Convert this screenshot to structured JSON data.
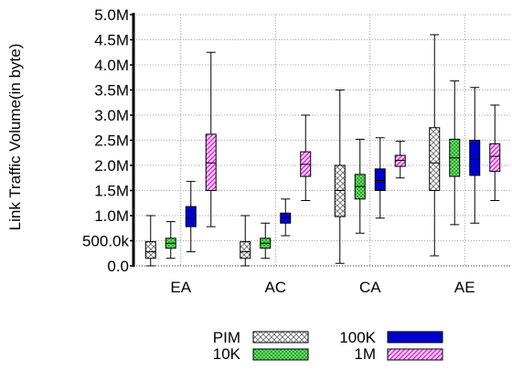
{
  "chart_data": {
    "type": "box",
    "ylabel": "Link Traffic Volume(in byte)",
    "ylim": [
      0,
      5000000
    ],
    "y_ticks": [
      {
        "value": 0,
        "label": "0.0"
      },
      {
        "value": 500000,
        "label": "500.0k"
      },
      {
        "value": 1000000,
        "label": "1.0M"
      },
      {
        "value": 1500000,
        "label": "1.5M"
      },
      {
        "value": 2000000,
        "label": "2.0M"
      },
      {
        "value": 2500000,
        "label": "2.5M"
      },
      {
        "value": 3000000,
        "label": "3.0M"
      },
      {
        "value": 3500000,
        "label": "3.5M"
      },
      {
        "value": 4000000,
        "label": "4.0M"
      },
      {
        "value": 4500000,
        "label": "4.5M"
      },
      {
        "value": 5000000,
        "label": "5.0M"
      }
    ],
    "categories": [
      "EA",
      "AC",
      "CA",
      "AE"
    ],
    "grid": true,
    "legend_position": "bottom",
    "series": [
      {
        "name": "PIM",
        "pattern": "crosshatch",
        "color": "#c8c8c8",
        "boxes": [
          {
            "min": 0,
            "q1": 150000,
            "median": 280000,
            "q3": 480000,
            "max": 1000000
          },
          {
            "min": 0,
            "q1": 150000,
            "median": 280000,
            "q3": 480000,
            "max": 1000000
          },
          {
            "min": 50000,
            "q1": 980000,
            "median": 1500000,
            "q3": 2000000,
            "max": 3500000
          },
          {
            "min": 200000,
            "q1": 1500000,
            "median": 2050000,
            "q3": 2750000,
            "max": 4600000
          }
        ]
      },
      {
        "name": "10K",
        "pattern": "dots",
        "color": "#4cd04c",
        "boxes": [
          {
            "min": 150000,
            "q1": 350000,
            "median": 450000,
            "q3": 550000,
            "max": 880000
          },
          {
            "min": 150000,
            "q1": 350000,
            "median": 450000,
            "q3": 550000,
            "max": 850000
          },
          {
            "min": 650000,
            "q1": 1330000,
            "median": 1580000,
            "q3": 1820000,
            "max": 2520000
          },
          {
            "min": 820000,
            "q1": 1780000,
            "median": 2150000,
            "q3": 2520000,
            "max": 3680000
          }
        ]
      },
      {
        "name": "100K",
        "pattern": "solid",
        "color": "#0000cc",
        "boxes": [
          {
            "min": 280000,
            "q1": 780000,
            "median": 950000,
            "q3": 1180000,
            "max": 1680000
          },
          {
            "min": 600000,
            "q1": 850000,
            "median": 960000,
            "q3": 1050000,
            "max": 1330000
          },
          {
            "min": 950000,
            "q1": 1500000,
            "median": 1700000,
            "q3": 1930000,
            "max": 2550000
          },
          {
            "min": 850000,
            "q1": 1800000,
            "median": 2120000,
            "q3": 2500000,
            "max": 3550000
          }
        ]
      },
      {
        "name": "1M",
        "pattern": "diagonal",
        "color": "#e040e0",
        "boxes": [
          {
            "min": 780000,
            "q1": 1500000,
            "median": 2050000,
            "q3": 2620000,
            "max": 4250000
          },
          {
            "min": 1300000,
            "q1": 1780000,
            "median": 2020000,
            "q3": 2270000,
            "max": 3000000
          },
          {
            "min": 1750000,
            "q1": 1980000,
            "median": 2100000,
            "q3": 2200000,
            "max": 2480000
          },
          {
            "min": 1300000,
            "q1": 1880000,
            "median": 2180000,
            "q3": 2430000,
            "max": 3200000
          }
        ]
      }
    ]
  }
}
